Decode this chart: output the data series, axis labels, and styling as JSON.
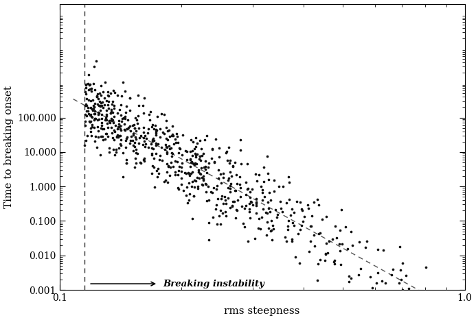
{
  "xlim": [
    0.1,
    1.0
  ],
  "ylim": [
    0.001,
    200000
  ],
  "xlabel": "rms steepness",
  "ylabel": "Time to breaking onset",
  "vline_x": 0.115,
  "dashed_line_power": -6.5,
  "dashed_line_coeff": 0.00018,
  "ytick_labels": [
    "0.001",
    "0.010",
    "0.100",
    "1.000",
    "10.000",
    "100.000"
  ],
  "ytick_values": [
    0.001,
    0.01,
    0.1,
    1.0,
    10.0,
    100.0
  ],
  "xtick_labels": [
    "0.1",
    "1.0"
  ],
  "xtick_values": [
    0.1,
    1.0
  ],
  "dot_color": "#111111",
  "background_color": "#ffffff",
  "seed": 42,
  "n_points": 700
}
